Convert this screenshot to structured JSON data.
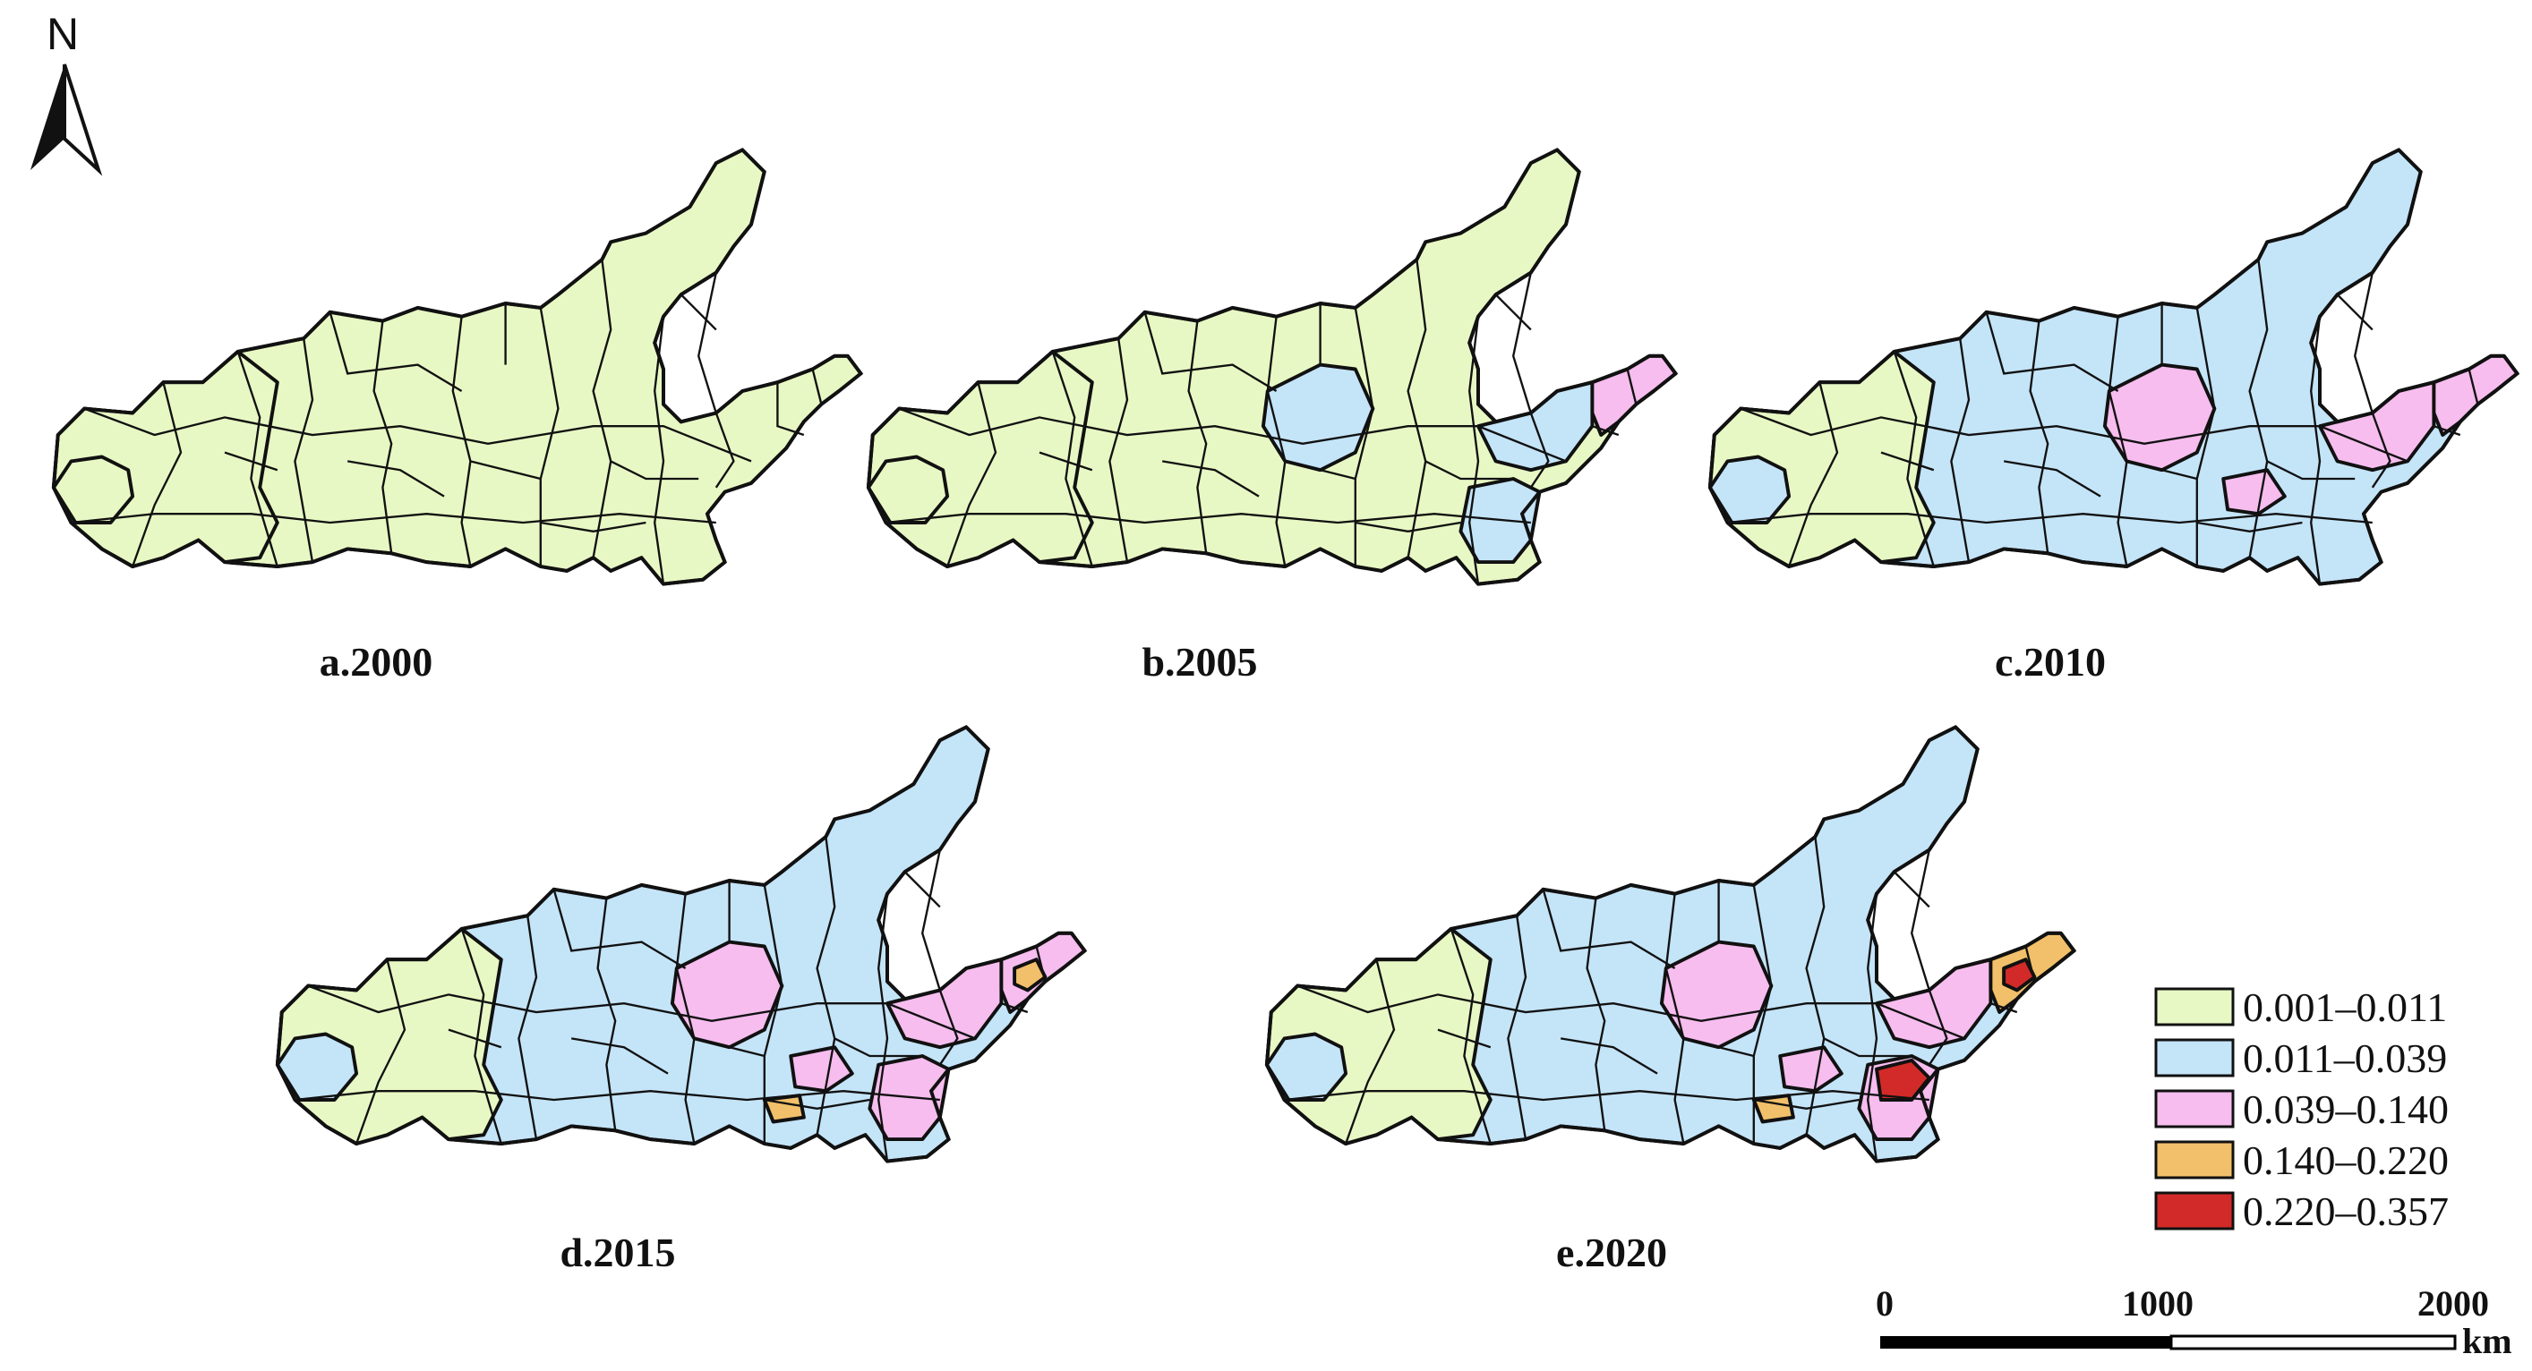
{
  "north_arrow": {
    "label": "N"
  },
  "classes": [
    {
      "id": "c1",
      "label": "0.001–0.011",
      "color": "#e8f8c4"
    },
    {
      "id": "c2",
      "label": "0.011–0.039",
      "color": "#c4e4f8"
    },
    {
      "id": "c3",
      "label": "0.039–0.140",
      "color": "#f6bdee"
    },
    {
      "id": "c4",
      "label": "0.140–0.220",
      "color": "#f2c06a"
    },
    {
      "id": "c5",
      "label": "0.220–0.357",
      "color": "#d22a28"
    }
  ],
  "panels": [
    {
      "label": "a.2000",
      "base": "c1",
      "west": "c1",
      "hotspots": []
    },
    {
      "label": "b.2005",
      "base": "c1",
      "west": "c1",
      "hotspots": [
        {
          "zone": "central",
          "class": "c2"
        },
        {
          "zone": "east",
          "class": "c2"
        },
        {
          "zone": "southeast",
          "class": "c2"
        },
        {
          "zone": "coast",
          "class": "c3"
        }
      ]
    },
    {
      "label": "c.2010",
      "base": "c2",
      "west": "c1",
      "hotspots": [
        {
          "zone": "central",
          "class": "c3"
        },
        {
          "zone": "east",
          "class": "c3"
        },
        {
          "zone": "coast",
          "class": "c3"
        },
        {
          "zone": "south",
          "class": "c3"
        }
      ]
    },
    {
      "label": "d.2015",
      "base": "c2",
      "west": "c1",
      "hotspots": [
        {
          "zone": "central",
          "class": "c3"
        },
        {
          "zone": "east",
          "class": "c3"
        },
        {
          "zone": "coast",
          "class": "c3"
        },
        {
          "zone": "south",
          "class": "c3"
        },
        {
          "zone": "southeast",
          "class": "c3"
        },
        {
          "zone": "coast_small",
          "class": "c4"
        },
        {
          "zone": "south_small",
          "class": "c4"
        }
      ]
    },
    {
      "label": "e.2020",
      "base": "c2",
      "west": "c1",
      "hotspots": [
        {
          "zone": "central",
          "class": "c3"
        },
        {
          "zone": "east",
          "class": "c3"
        },
        {
          "zone": "southeast",
          "class": "c3"
        },
        {
          "zone": "south",
          "class": "c3"
        },
        {
          "zone": "coast",
          "class": "c4"
        },
        {
          "zone": "coast_small",
          "class": "c5"
        },
        {
          "zone": "southeast_core",
          "class": "c5"
        },
        {
          "zone": "south_small",
          "class": "c4"
        }
      ]
    }
  ],
  "scale_bar": {
    "ticks": [
      "0",
      "1000",
      "2000"
    ],
    "unit": "km"
  }
}
